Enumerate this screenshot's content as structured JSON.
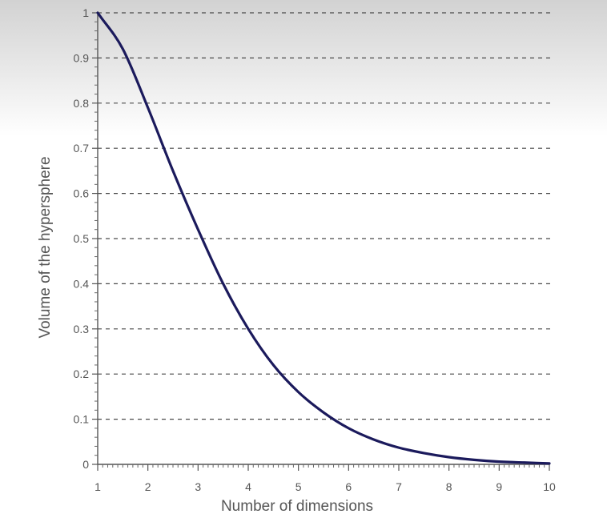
{
  "chart_data": {
    "type": "line",
    "xlabel": "Number of dimensions",
    "ylabel": "Volume of the hypersphere",
    "xlim": [
      1,
      10
    ],
    "ylim": [
      0,
      1
    ],
    "xticks": [
      "1",
      "2",
      "3",
      "4",
      "5",
      "6",
      "7",
      "8",
      "9",
      "10"
    ],
    "yticks": [
      "0",
      "0.1",
      "0.2",
      "0.3",
      "0.4",
      "0.5",
      "0.6",
      "0.7",
      "0.8",
      "0.9",
      "1"
    ],
    "grid": "horizontal dashed",
    "series": [
      {
        "color": "#1b1a5c",
        "x": [
          1,
          1.5,
          2,
          2.5,
          3,
          3.5,
          4,
          4.5,
          5,
          5.5,
          6,
          6.5,
          7,
          7.5,
          8,
          8.5,
          9,
          9.5,
          10
        ],
        "y": [
          1.0,
          0.92,
          0.79,
          0.65,
          0.52,
          0.4,
          0.3,
          0.22,
          0.16,
          0.115,
          0.08,
          0.055,
          0.037,
          0.025,
          0.016,
          0.01,
          0.006,
          0.004,
          0.002
        ]
      }
    ]
  }
}
